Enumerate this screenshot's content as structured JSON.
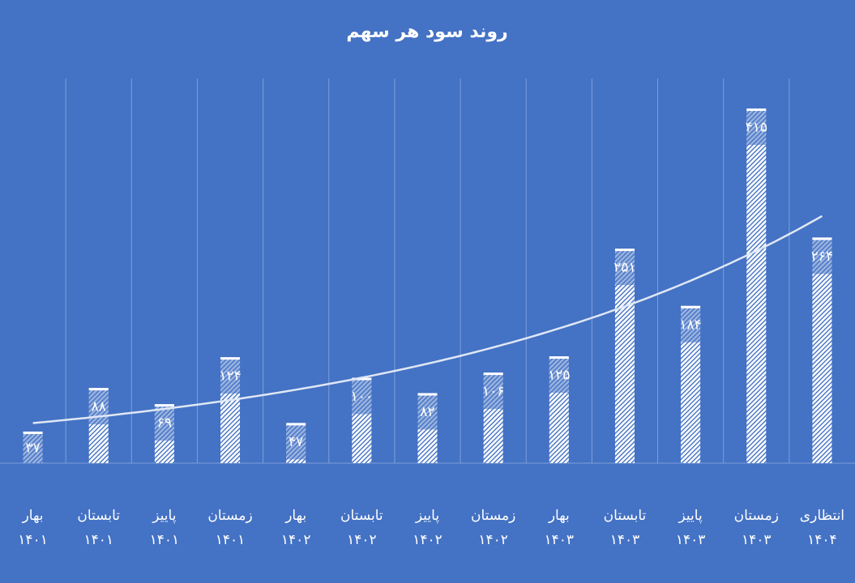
{
  "chart_data": {
    "type": "bar",
    "title": "روند سود هر سهم",
    "categories": [
      [
        "بهار",
        "۱۴۰۱"
      ],
      [
        "تابستان",
        "۱۴۰۱"
      ],
      [
        "پاییز",
        "۱۴۰۱"
      ],
      [
        "زمستان",
        "۱۴۰۱"
      ],
      [
        "بهار",
        "۱۴۰۲"
      ],
      [
        "تابستان",
        "۱۴۰۲"
      ],
      [
        "پاییز",
        "۱۴۰۲"
      ],
      [
        "زمستان",
        "۱۴۰۲"
      ],
      [
        "بهار",
        "۱۴۰۳"
      ],
      [
        "تابستان",
        "۱۴۰۳"
      ],
      [
        "پاییز",
        "۱۴۰۳"
      ],
      [
        "زمستان",
        "۱۴۰۳"
      ],
      [
        "انتظاری",
        "۱۴۰۴"
      ]
    ],
    "values": [
      37,
      88,
      69,
      124,
      47,
      100,
      82,
      106,
      125,
      251,
      184,
      415,
      264
    ],
    "value_labels": [
      "۳۷",
      "۸۸",
      "۶۹",
      "۱۲۴",
      "۴۷",
      "۱۰۰",
      "۸۲",
      "۱۰۶",
      "۱۲۵",
      "۲۵۱",
      "۱۸۴",
      "۴۱۵",
      "۲۶۴"
    ],
    "color": "#ffffff",
    "ylim": [
      0,
      450
    ],
    "trendline": "exponential",
    "grid": true
  }
}
